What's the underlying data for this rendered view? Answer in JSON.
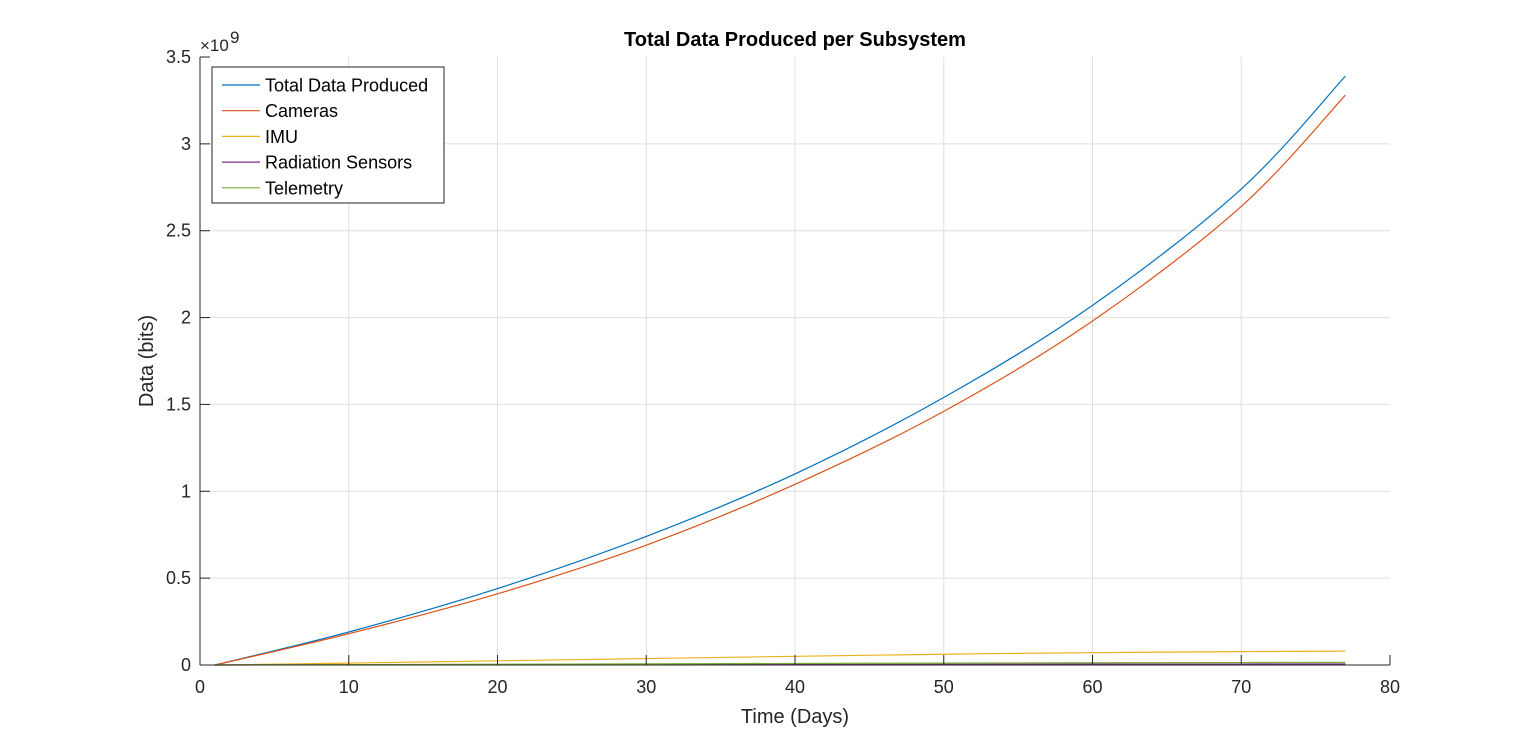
{
  "chart_data": {
    "type": "line",
    "title": "Total Data Produced per Subsystem",
    "xlabel": "Time (Days)",
    "ylabel": "Data (bits)",
    "y_exponent_label": "×10",
    "y_exponent_power": "9",
    "xlim": [
      0,
      80
    ],
    "ylim": [
      0,
      3.5
    ],
    "xticks": [
      0,
      10,
      20,
      30,
      40,
      50,
      60,
      70,
      80
    ],
    "xtick_labels": [
      "0",
      "10",
      "20",
      "30",
      "40",
      "50",
      "60",
      "70",
      "80"
    ],
    "yticks": [
      0,
      0.5,
      1,
      1.5,
      2,
      2.5,
      3,
      3.5
    ],
    "ytick_labels": [
      "0",
      "0.5",
      "1",
      "1.5",
      "2",
      "2.5",
      "3",
      "3.5"
    ],
    "grid": true,
    "legend_position": "top-left",
    "x": [
      1,
      10,
      20,
      30,
      40,
      50,
      60,
      70,
      77
    ],
    "series": [
      {
        "name": "Total Data Produced",
        "color": "#0072bd",
        "values": [
          0.0,
          0.19,
          0.44,
          0.74,
          1.1,
          1.54,
          2.07,
          2.74,
          3.39
        ]
      },
      {
        "name": "Cameras",
        "color": "#d95319",
        "values": [
          0.0,
          0.18,
          0.41,
          0.69,
          1.04,
          1.46,
          1.98,
          2.64,
          3.28
        ]
      },
      {
        "name": "IMU",
        "color": "#edb120",
        "values": [
          0.0,
          0.011,
          0.024,
          0.037,
          0.05,
          0.062,
          0.071,
          0.077,
          0.08
        ]
      },
      {
        "name": "Radiation Sensors",
        "color": "#7e2f8e",
        "values": [
          0.0,
          0.0008,
          0.0017,
          0.0026,
          0.0035,
          0.0043,
          0.005,
          0.0055,
          0.0058
        ]
      },
      {
        "name": "Telemetry",
        "color": "#77ac30",
        "values": [
          0.0,
          0.002,
          0.0043,
          0.0066,
          0.0089,
          0.011,
          0.0128,
          0.0141,
          0.0148
        ]
      }
    ]
  }
}
